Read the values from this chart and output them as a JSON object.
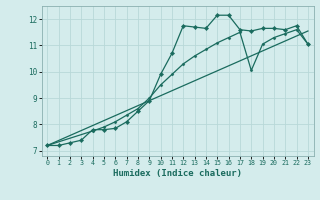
{
  "xlabel": "Humidex (Indice chaleur)",
  "x_values": [
    0,
    1,
    2,
    3,
    4,
    5,
    6,
    7,
    8,
    9,
    10,
    11,
    12,
    13,
    14,
    15,
    16,
    17,
    18,
    19,
    20,
    21,
    22,
    23
  ],
  "line1": [
    7.2,
    7.2,
    7.3,
    7.4,
    7.8,
    7.8,
    7.85,
    8.1,
    8.5,
    8.9,
    9.9,
    10.7,
    11.75,
    11.7,
    11.65,
    12.15,
    12.15,
    11.6,
    11.55,
    11.65,
    11.65,
    11.6,
    11.75,
    11.05
  ],
  "line2_x": [
    0,
    23
  ],
  "line2_y": [
    7.2,
    11.55
  ],
  "line3_x": [
    0,
    4,
    5,
    6,
    7,
    8,
    9,
    10,
    11,
    12,
    13,
    14,
    15,
    16,
    17,
    18,
    19,
    20,
    21,
    22,
    23
  ],
  "line3_y": [
    7.2,
    7.75,
    7.9,
    8.1,
    8.35,
    8.6,
    9.0,
    9.5,
    9.9,
    10.3,
    10.6,
    10.85,
    11.1,
    11.3,
    11.5,
    10.05,
    11.05,
    11.3,
    11.45,
    11.6,
    11.05
  ],
  "ylim": [
    6.8,
    12.5
  ],
  "xlim": [
    -0.5,
    23.5
  ],
  "yticks": [
    7,
    8,
    9,
    10,
    11,
    12
  ],
  "xticks": [
    0,
    1,
    2,
    3,
    4,
    5,
    6,
    7,
    8,
    9,
    10,
    11,
    12,
    13,
    14,
    15,
    16,
    17,
    18,
    19,
    20,
    21,
    22,
    23
  ],
  "line_color": "#1a6b5e",
  "bg_color": "#d4ecec",
  "grid_color": "#b8d8d8",
  "marker": "D",
  "marker_size": 2.2,
  "linewidth": 0.9
}
